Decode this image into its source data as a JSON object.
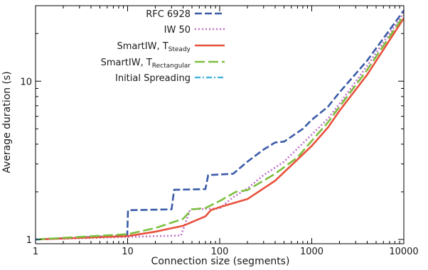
{
  "chart_data": {
    "type": "line",
    "title": "",
    "xlabel": "Connection size (segments)",
    "ylabel": "Average duration (s)",
    "xscale": "log",
    "yscale": "log",
    "xlim": [
      1,
      10000
    ],
    "ylim": [
      0.94,
      30
    ],
    "x_ticks": [
      1,
      10,
      100,
      1000,
      10000
    ],
    "x_tick_labels": [
      "1",
      "10",
      "100",
      "1000",
      "10000"
    ],
    "y_ticks": [
      1,
      10
    ],
    "y_tick_labels": [
      "1",
      "10"
    ],
    "grid": false,
    "legend_placement": "top-center",
    "series": [
      {
        "name": "RFC 6928",
        "color": "#3a5ba8",
        "dash": "10,4",
        "points": [
          [
            1,
            1.0
          ],
          [
            9.9,
            1.06
          ],
          [
            10.1,
            1.53
          ],
          [
            30,
            1.55
          ],
          [
            32,
            2.06
          ],
          [
            70,
            2.08
          ],
          [
            75,
            2.55
          ],
          [
            140,
            2.6
          ],
          [
            200,
            3.1
          ],
          [
            300,
            3.7
          ],
          [
            400,
            4.1
          ],
          [
            500,
            4.15
          ],
          [
            800,
            5.0
          ],
          [
            1000,
            5.7
          ],
          [
            1500,
            6.9
          ],
          [
            2000,
            8.5
          ],
          [
            4000,
            13.5
          ],
          [
            10000,
            28
          ]
        ]
      },
      {
        "name": "IW 50",
        "color": "#c070c8",
        "dash": "2,3",
        "points": [
          [
            1,
            1.0
          ],
          [
            38,
            1.06
          ],
          [
            48,
            1.55
          ],
          [
            100,
            1.57
          ],
          [
            140,
            1.85
          ],
          [
            200,
            2.1
          ],
          [
            300,
            2.55
          ],
          [
            500,
            3.1
          ],
          [
            1000,
            4.6
          ],
          [
            1500,
            5.8
          ],
          [
            2000,
            7.2
          ],
          [
            4000,
            12.5
          ],
          [
            10000,
            27
          ]
        ]
      },
      {
        "name": "SmartIW, T",
        "sub": "Steady",
        "color": "#e8513c",
        "dash": "",
        "points": [
          [
            1,
            1.0
          ],
          [
            10,
            1.05
          ],
          [
            20,
            1.12
          ],
          [
            40,
            1.22
          ],
          [
            70,
            1.4
          ],
          [
            80,
            1.53
          ],
          [
            100,
            1.6
          ],
          [
            200,
            1.8
          ],
          [
            400,
            2.35
          ],
          [
            700,
            3.2
          ],
          [
            1000,
            3.9
          ],
          [
            1500,
            5.1
          ],
          [
            2000,
            6.5
          ],
          [
            4000,
            11.0
          ],
          [
            10000,
            25
          ]
        ]
      },
      {
        "name": "SmartIW, T",
        "sub": "Rectangular",
        "color": "#7cc040",
        "dash": "14,5",
        "points": [
          [
            1,
            1.0
          ],
          [
            10,
            1.08
          ],
          [
            20,
            1.18
          ],
          [
            40,
            1.35
          ],
          [
            50,
            1.55
          ],
          [
            70,
            1.58
          ],
          [
            100,
            1.75
          ],
          [
            150,
            2.0
          ],
          [
            200,
            2.05
          ],
          [
            400,
            2.6
          ],
          [
            700,
            3.3
          ],
          [
            1000,
            4.2
          ],
          [
            1500,
            5.5
          ],
          [
            2000,
            6.9
          ],
          [
            4000,
            11.8
          ],
          [
            10000,
            26
          ]
        ]
      },
      {
        "name": "Initial Spreading",
        "color": "#48b6e0",
        "dash": "8,3,2,3",
        "points": [
          [
            1,
            1.0
          ],
          [
            1.1,
            1.0
          ]
        ]
      }
    ]
  }
}
